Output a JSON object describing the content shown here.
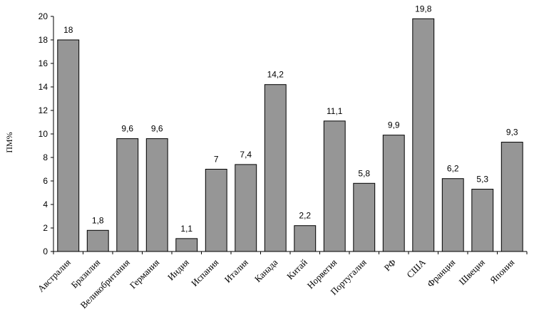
{
  "chart_data": {
    "type": "bar",
    "ylabel": "ПМ%",
    "ylim": [
      0,
      20
    ],
    "yticks": [
      0,
      2,
      4,
      6,
      8,
      10,
      12,
      14,
      16,
      18,
      20
    ],
    "grid": false,
    "categories": [
      "Австралия",
      "Бразилия",
      "Великобритания",
      "Германия",
      "Индия",
      "Испания",
      "Италия",
      "Канада",
      "Китай",
      "Норвегия",
      "Португалия",
      "РФ",
      "США",
      "Франция",
      "Швеция",
      "Япония"
    ],
    "values": [
      18,
      1.8,
      9.6,
      9.6,
      1.1,
      7,
      7.4,
      14.2,
      2.2,
      11.1,
      5.8,
      9.9,
      19.8,
      6.2,
      5.3,
      9.3
    ],
    "value_labels": [
      "18",
      "1,8",
      "9,6",
      "9,6",
      "1,1",
      "7",
      "7,4",
      "14,2",
      "2,2",
      "11,1",
      "5,8",
      "9,9",
      "19,8",
      "6,2",
      "5,3",
      "9,3"
    ],
    "colors": {
      "bar": "#969696",
      "outline": "#000000"
    }
  }
}
